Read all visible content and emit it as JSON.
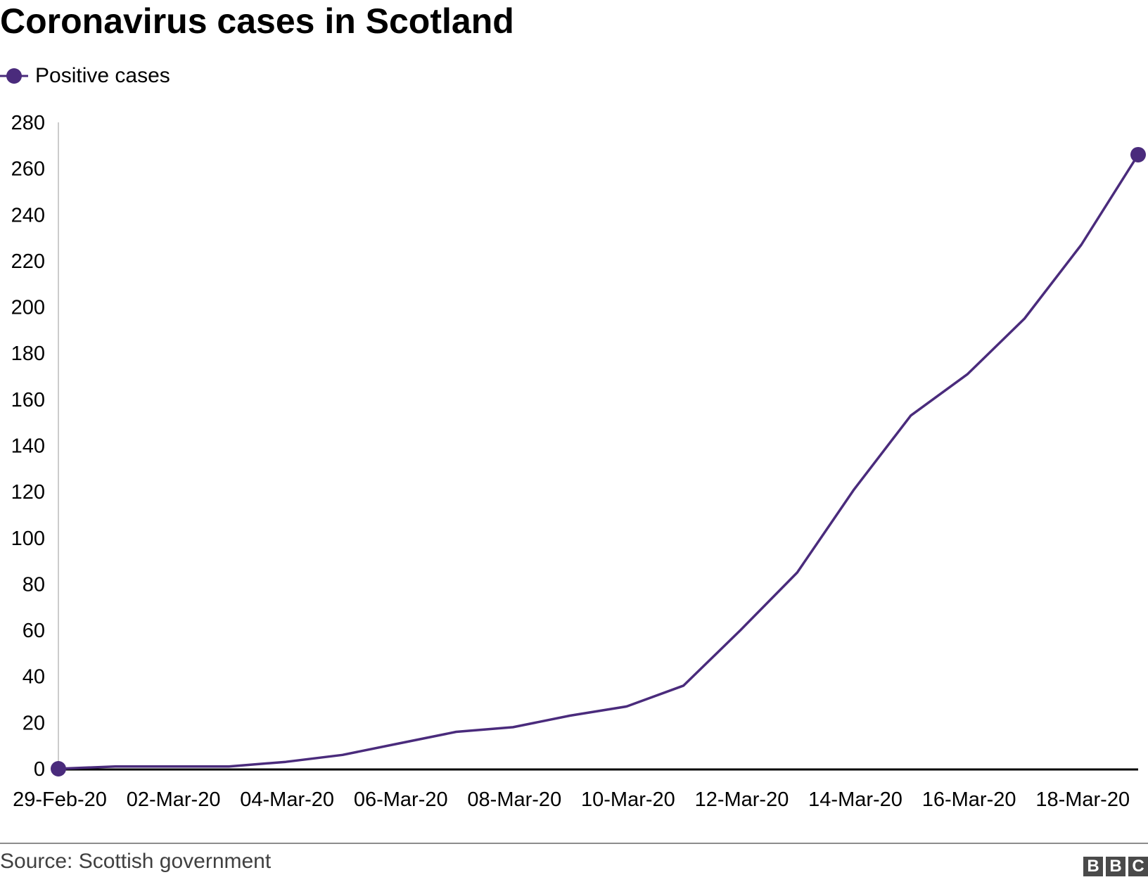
{
  "title": "Coronavirus cases in Scotland",
  "source": "Source: Scottish government",
  "logo": [
    "B",
    "B",
    "C"
  ],
  "colors": {
    "series": "#4a2b7c",
    "axis": "#000000",
    "y_axis_line": "#cccccc",
    "footer_rule": "#8c8c8c",
    "logo_bg": "#4a4a4a"
  },
  "chart_data": {
    "type": "line",
    "title": "Coronavirus cases in Scotland",
    "xlabel": "",
    "ylabel": "",
    "x": [
      "29-Feb-20",
      "01-Mar-20",
      "02-Mar-20",
      "03-Mar-20",
      "04-Mar-20",
      "05-Mar-20",
      "06-Mar-20",
      "07-Mar-20",
      "08-Mar-20",
      "09-Mar-20",
      "10-Mar-20",
      "11-Mar-20",
      "12-Mar-20",
      "13-Mar-20",
      "14-Mar-20",
      "15-Mar-20",
      "16-Mar-20",
      "17-Mar-20",
      "18-Mar-20",
      "19-Mar-20"
    ],
    "x_tick_labels": [
      "29-Feb-20",
      "02-Mar-20",
      "04-Mar-20",
      "06-Mar-20",
      "08-Mar-20",
      "10-Mar-20",
      "12-Mar-20",
      "14-Mar-20",
      "16-Mar-20",
      "18-Mar-20"
    ],
    "series": [
      {
        "name": "Positive cases",
        "values": [
          0,
          1,
          1,
          1,
          3,
          6,
          11,
          16,
          18,
          23,
          27,
          36,
          60,
          85,
          121,
          153,
          171,
          195,
          227,
          266
        ]
      }
    ],
    "ylim": [
      0,
      280
    ],
    "y_ticks": [
      0,
      20,
      40,
      60,
      80,
      100,
      120,
      140,
      160,
      180,
      200,
      220,
      240,
      260,
      280
    ],
    "grid": false,
    "markers": "first-and-last",
    "legend": "top-left"
  }
}
